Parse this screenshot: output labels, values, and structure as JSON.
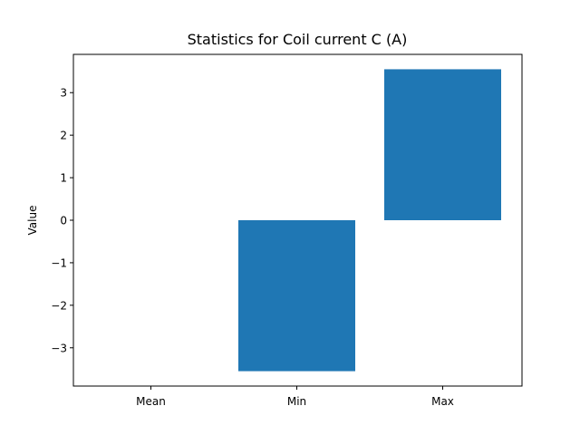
{
  "chart_data": {
    "type": "bar",
    "title": "Statistics for Coil current C (A)",
    "xlabel": "",
    "ylabel": "Value",
    "categories": [
      "Mean",
      "Min",
      "Max"
    ],
    "values": [
      0.0,
      -3.55,
      3.55
    ],
    "ylim": [
      -3.9,
      3.9
    ],
    "yticks": [
      -3,
      -2,
      -1,
      0,
      1,
      2,
      3
    ],
    "ytick_labels": [
      "−3",
      "−2",
      "−1",
      "0",
      "1",
      "2",
      "3"
    ],
    "bar_color": "#1f77b4",
    "grid": false
  }
}
